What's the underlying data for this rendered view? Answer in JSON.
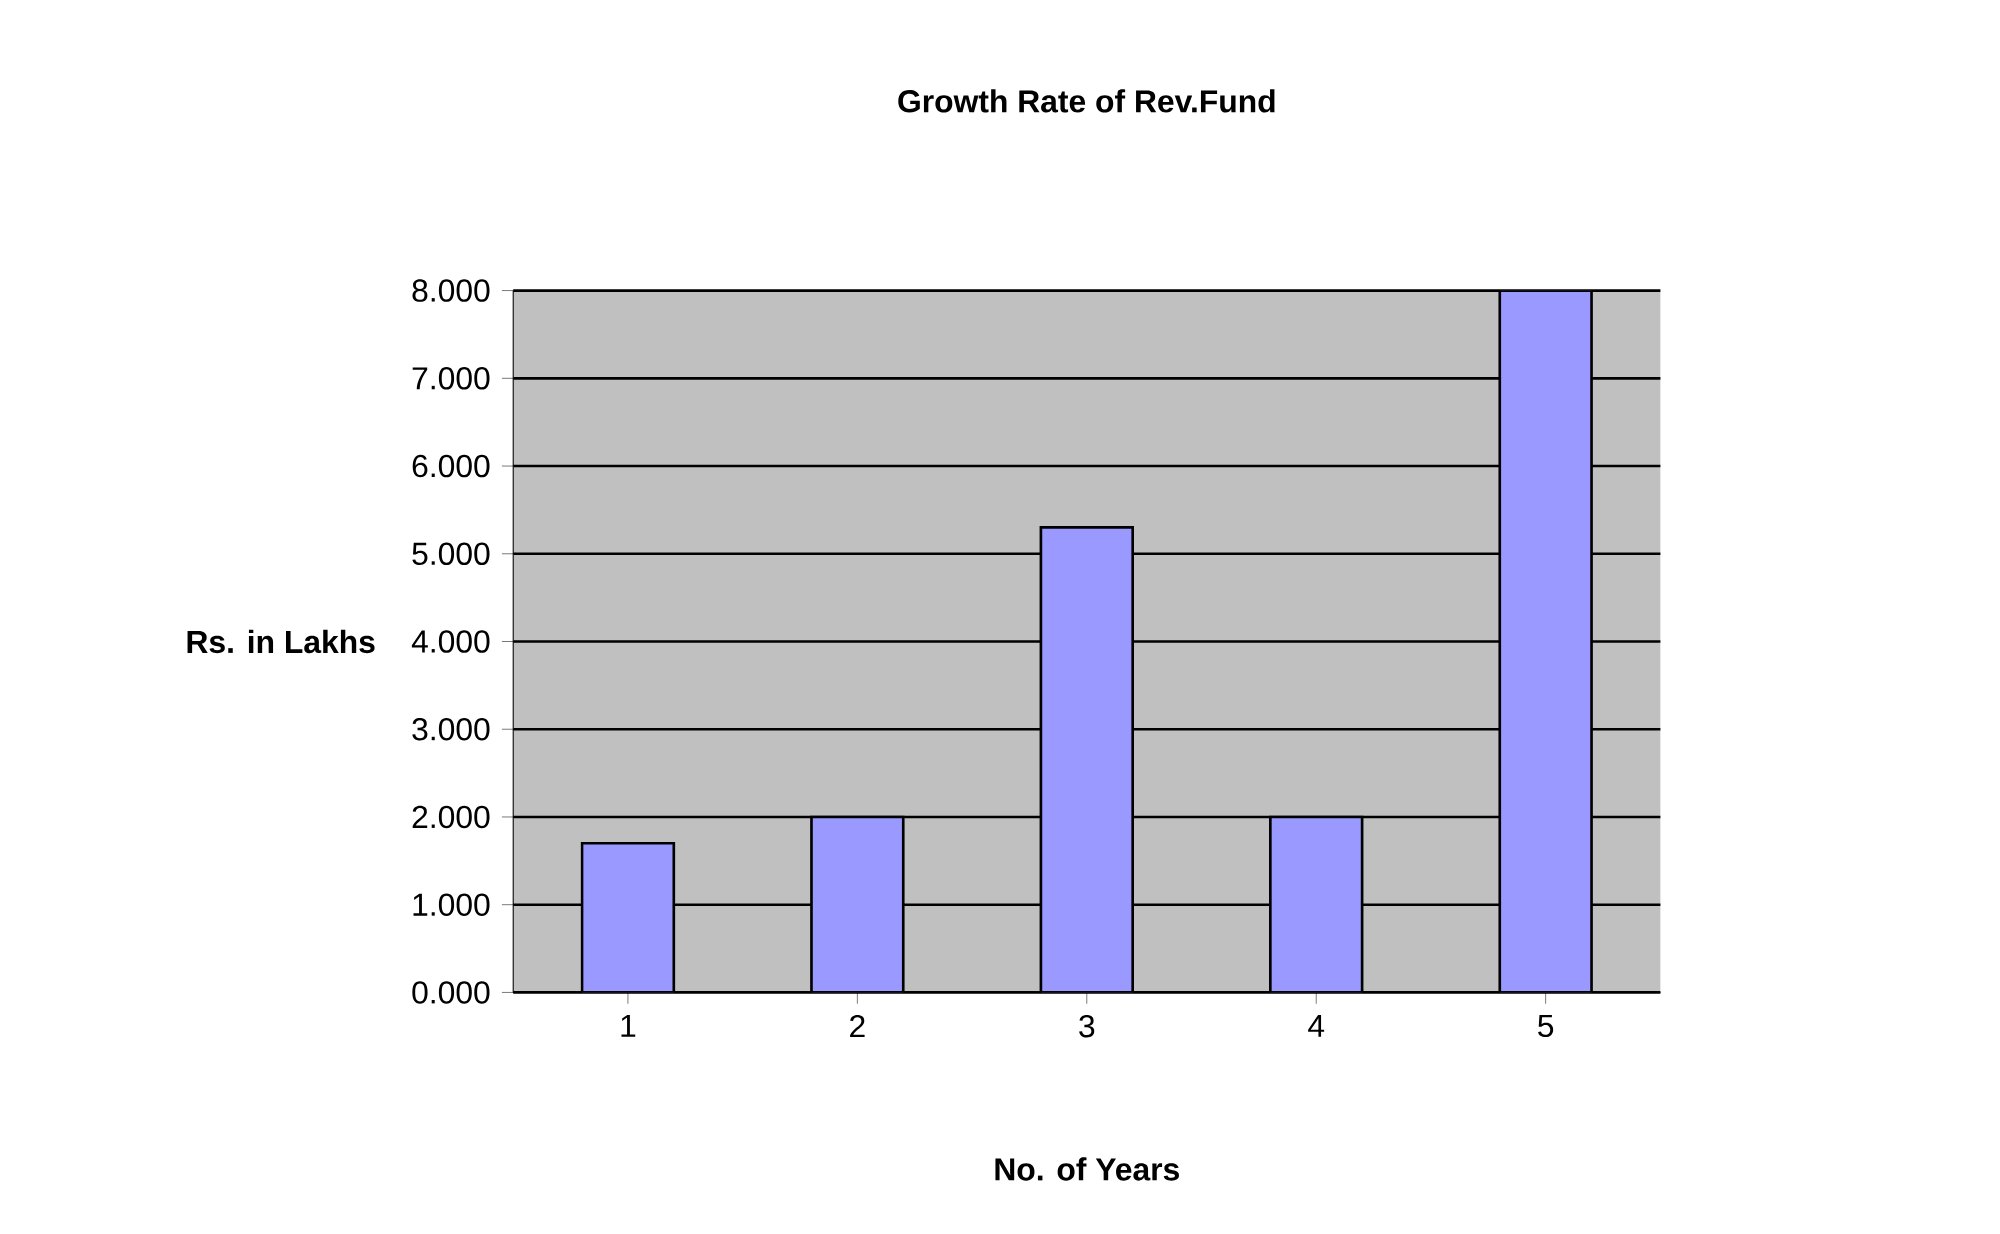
{
  "chart_data": {
    "type": "bar",
    "title": "Growth Rate of Rev.Fund",
    "xlabel": "No. of Years",
    "ylabel": "Rs. in Lakhs",
    "categories": [
      "1",
      "2",
      "3",
      "4",
      "5"
    ],
    "values": [
      1.7,
      2.0,
      5.3,
      2.0,
      8.0
    ],
    "color": "#9999ff",
    "ylim": [
      0,
      8
    ],
    "yticks": [
      {
        "value": 0,
        "label": "0.000"
      },
      {
        "value": 1,
        "label": "1.000"
      },
      {
        "value": 2,
        "label": "2.000"
      },
      {
        "value": 3,
        "label": "3.000"
      },
      {
        "value": 4,
        "label": "4.000"
      },
      {
        "value": 5,
        "label": "5.000"
      },
      {
        "value": 6,
        "label": "6.000"
      },
      {
        "value": 7,
        "label": "7.000"
      },
      {
        "value": 8,
        "label": "8.000"
      }
    ],
    "grid": "y"
  }
}
